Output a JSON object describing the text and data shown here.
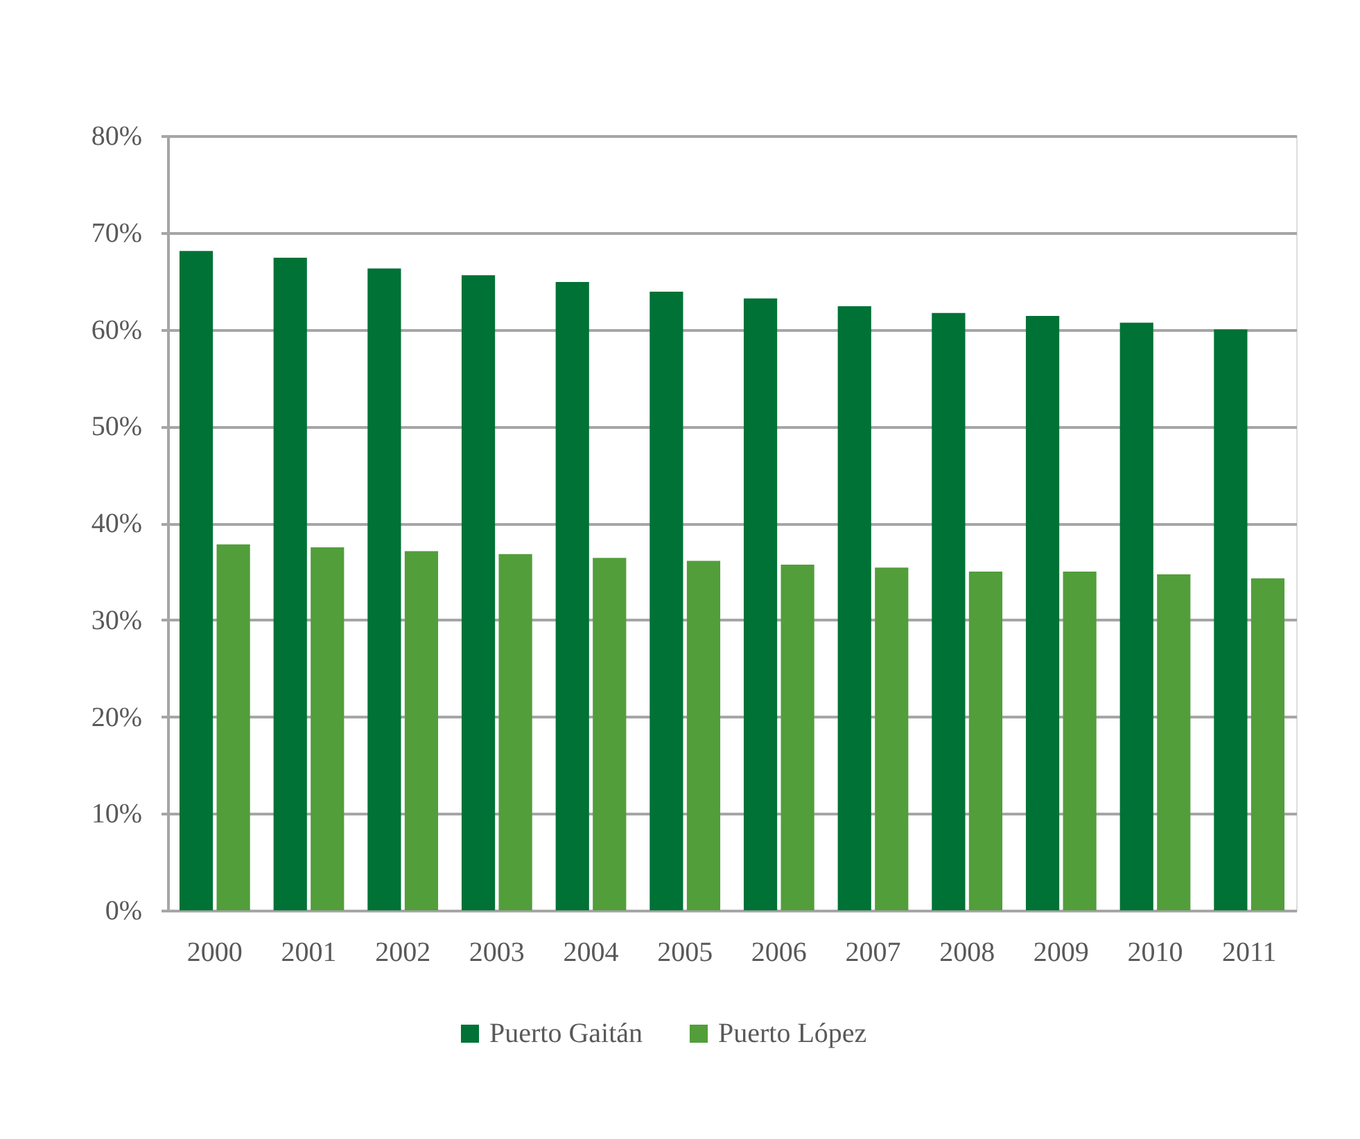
{
  "chart_data": {
    "type": "bar",
    "categories": [
      "2000",
      "2001",
      "2002",
      "2003",
      "2004",
      "2005",
      "2006",
      "2007",
      "2008",
      "2009",
      "2010",
      "2011"
    ],
    "series": [
      {
        "name": "Puerto Gaitán",
        "color": "#007236",
        "values": [
          68.1,
          67.4,
          66.3,
          65.6,
          64.9,
          63.9,
          63.2,
          62.4,
          61.7,
          61.4,
          60.7,
          60.0
        ]
      },
      {
        "name": "Puerto López",
        "color": "#529e3b",
        "values": [
          37.8,
          37.5,
          37.1,
          36.8,
          36.4,
          36.1,
          35.7,
          35.4,
          35.0,
          35.0,
          34.7,
          34.3
        ]
      }
    ],
    "ylim": [
      0,
      80
    ],
    "yticks": [
      {
        "value": 0,
        "label": "0%"
      },
      {
        "value": 10,
        "label": "10%"
      },
      {
        "value": 20,
        "label": "20%"
      },
      {
        "value": 30,
        "label": "30%"
      },
      {
        "value": 40,
        "label": "40%"
      },
      {
        "value": 50,
        "label": "50%"
      },
      {
        "value": 60,
        "label": "60%"
      },
      {
        "value": 70,
        "label": "70%"
      },
      {
        "value": 80,
        "label": "80%"
      }
    ],
    "grid": "y",
    "legend": "bottom"
  }
}
